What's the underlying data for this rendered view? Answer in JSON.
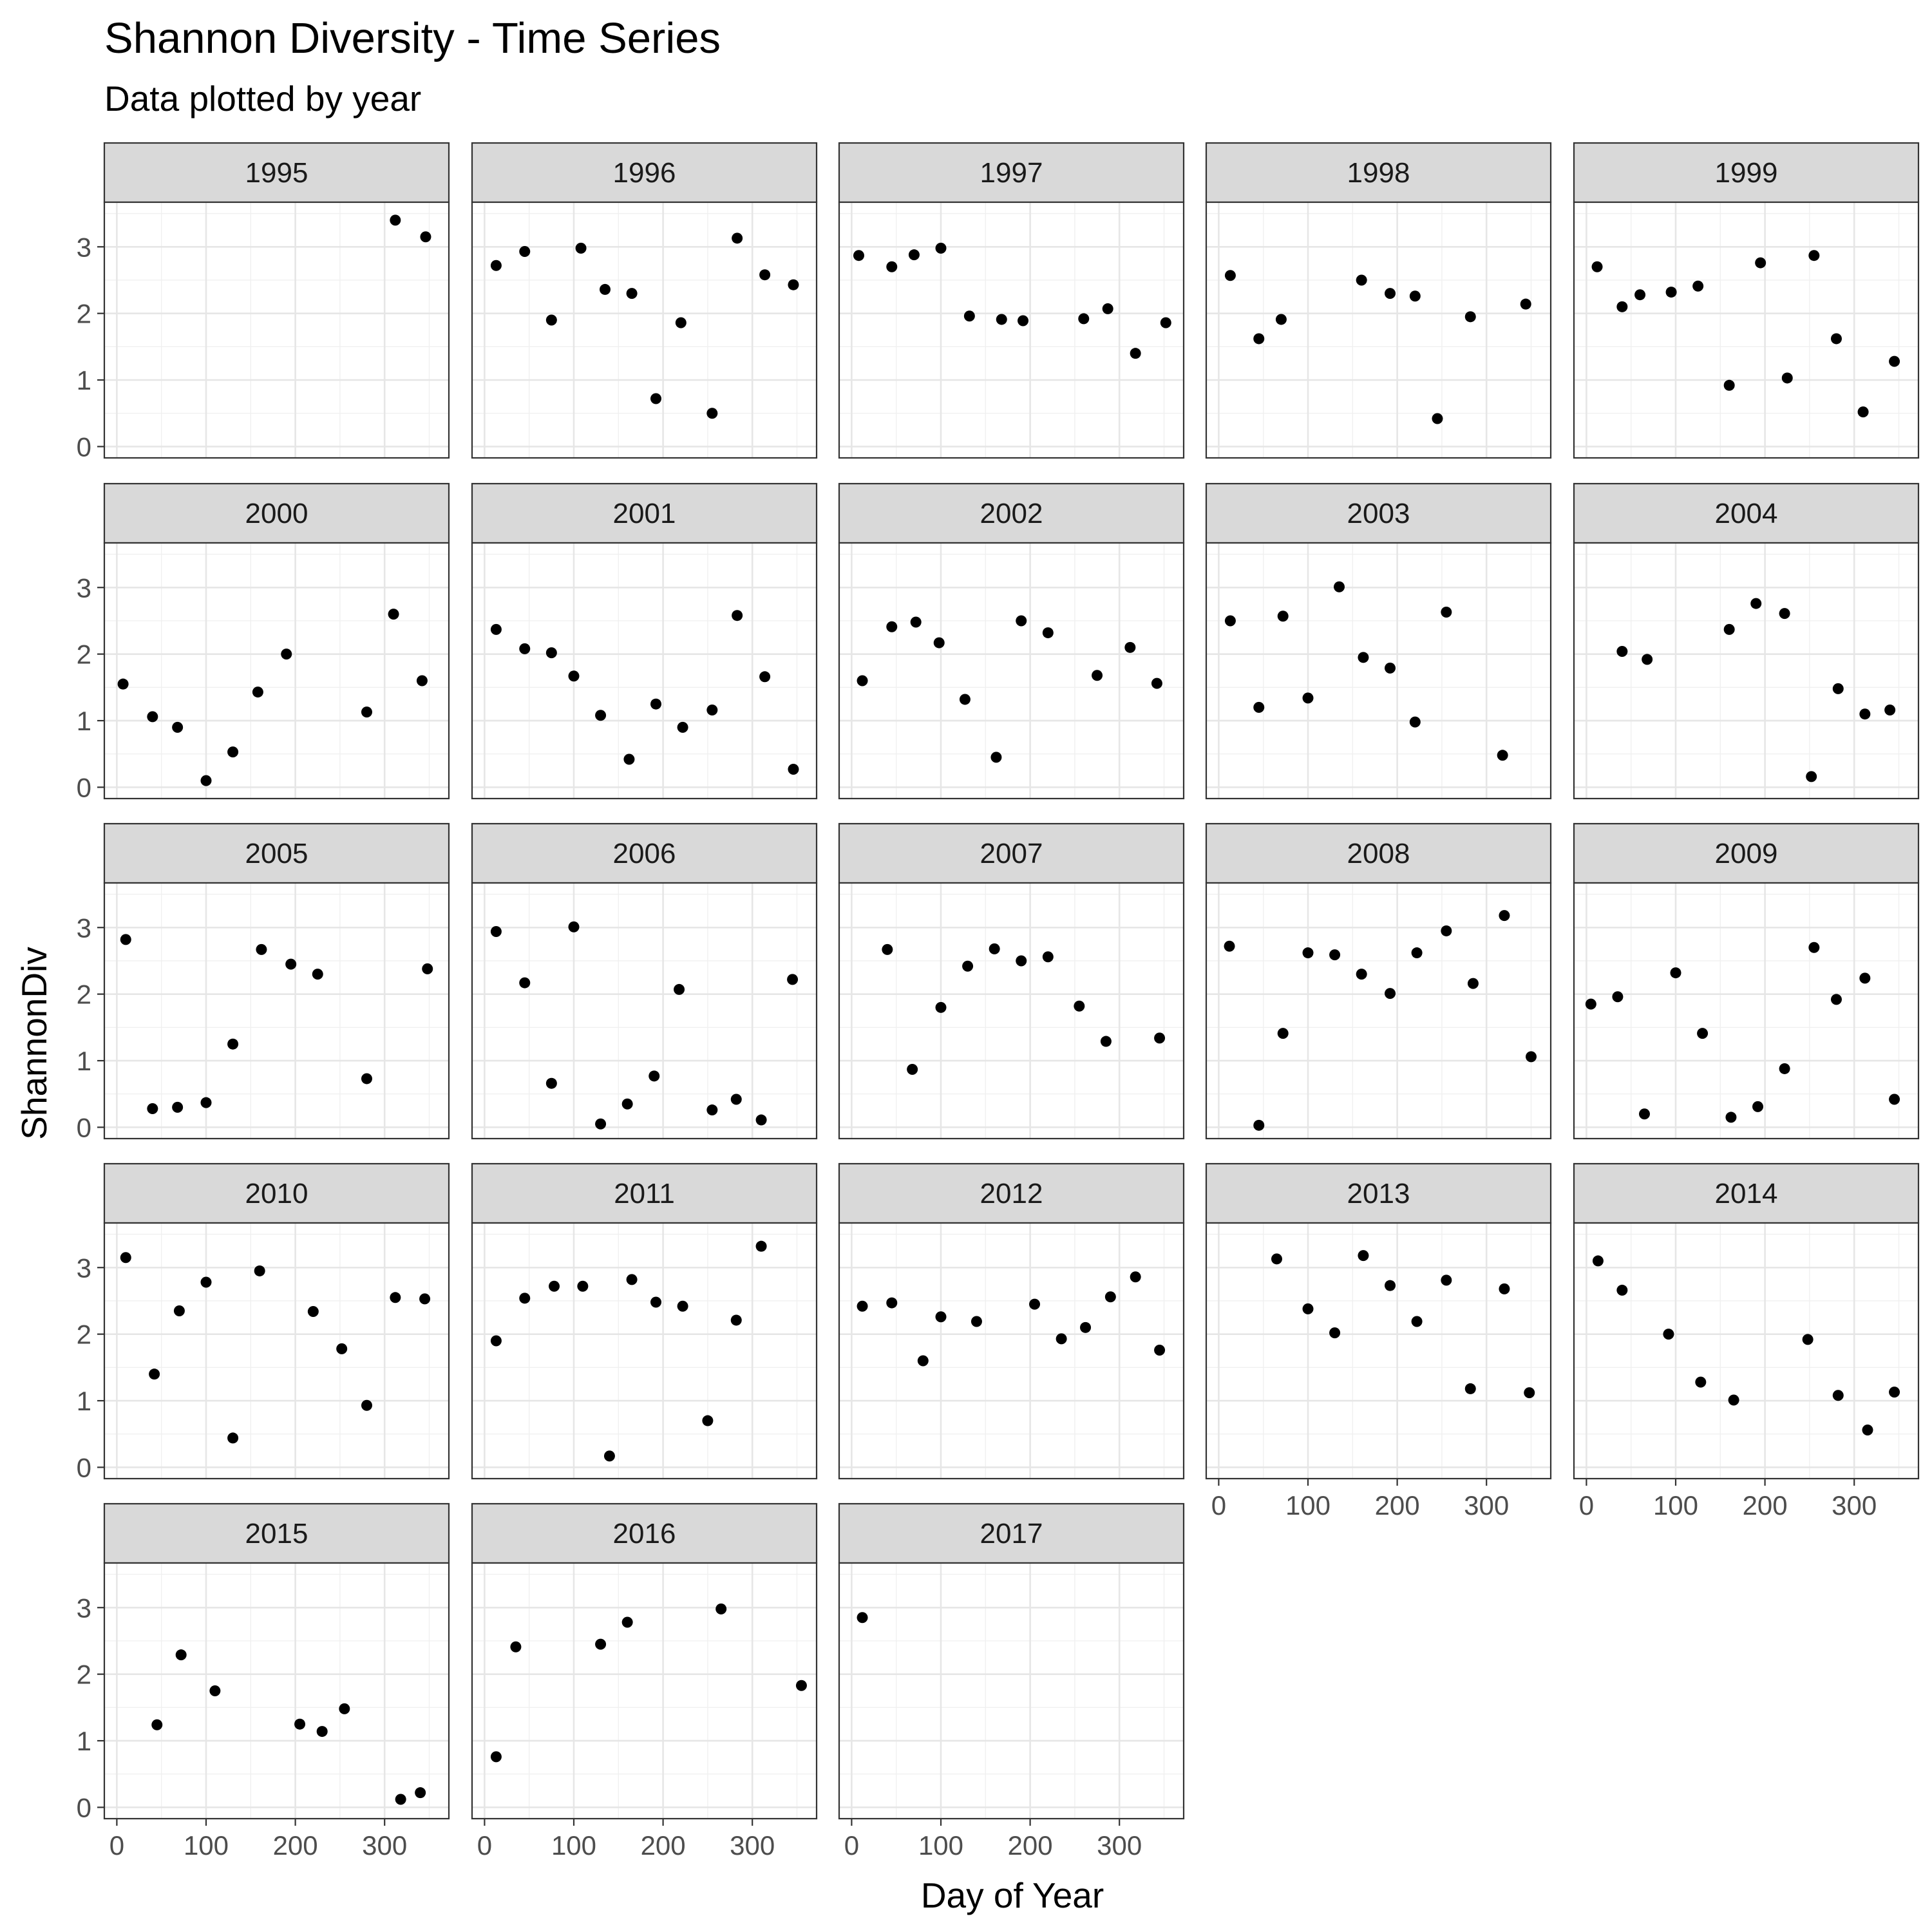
{
  "chart_data": {
    "type": "scatter",
    "title": "Shannon Diversity - Time Series",
    "subtitle": "Data plotted by year",
    "xlabel": "Day of Year",
    "ylabel": "ShannonDiv",
    "xlim": [
      0,
      365
    ],
    "ylim": [
      0,
      3.5
    ],
    "x_ticks": [
      0,
      100,
      200,
      300
    ],
    "y_ticks": [
      0,
      1,
      2,
      3
    ],
    "grid": true,
    "facets": [
      {
        "panel": "1995",
        "x": [
          312,
          346
        ],
        "y": [
          3.4,
          3.15
        ]
      },
      {
        "panel": "1996",
        "x": [
          13,
          45,
          75,
          108,
          135,
          165,
          192,
          220,
          255,
          283,
          314,
          346
        ],
        "y": [
          2.72,
          2.93,
          1.9,
          2.98,
          2.36,
          2.3,
          0.72,
          1.86,
          0.5,
          3.13,
          2.58,
          2.43
        ]
      },
      {
        "panel": "1997",
        "x": [
          8,
          45,
          70,
          100,
          132,
          168,
          192,
          260,
          287,
          318,
          352
        ],
        "y": [
          2.87,
          2.7,
          2.88,
          2.98,
          1.96,
          1.91,
          1.89,
          1.92,
          2.07,
          1.4,
          1.86
        ]
      },
      {
        "panel": "1998",
        "x": [
          13,
          45,
          70,
          160,
          192,
          220,
          245,
          282,
          344
        ],
        "y": [
          2.57,
          1.62,
          1.91,
          2.5,
          2.3,
          2.26,
          0.42,
          1.95,
          2.14
        ]
      },
      {
        "panel": "1999",
        "x": [
          12,
          40,
          60,
          95,
          125,
          160,
          195,
          225,
          255,
          280,
          310,
          345
        ],
        "y": [
          2.7,
          2.1,
          2.28,
          2.32,
          2.41,
          0.92,
          2.76,
          1.03,
          2.87,
          1.62,
          0.52,
          1.28
        ]
      },
      {
        "panel": "2000",
        "x": [
          7,
          40,
          68,
          100,
          130,
          158,
          190,
          280,
          310,
          342
        ],
        "y": [
          1.55,
          1.06,
          0.9,
          0.1,
          0.53,
          1.43,
          2.0,
          1.13,
          2.6,
          1.6
        ]
      },
      {
        "panel": "2001",
        "x": [
          13,
          45,
          75,
          100,
          130,
          162,
          192,
          222,
          255,
          283,
          314,
          346
        ],
        "y": [
          2.37,
          2.08,
          2.02,
          1.67,
          1.08,
          0.42,
          1.25,
          0.9,
          1.16,
          2.58,
          1.66,
          0.27
        ]
      },
      {
        "panel": "2002",
        "x": [
          12,
          45,
          72,
          98,
          127,
          162,
          190,
          220,
          275,
          312,
          342
        ],
        "y": [
          1.6,
          2.41,
          2.48,
          2.17,
          1.32,
          0.45,
          2.5,
          2.32,
          1.68,
          2.1,
          1.56
        ]
      },
      {
        "panel": "2003",
        "x": [
          13,
          45,
          72,
          100,
          135,
          162,
          192,
          220,
          255,
          318
        ],
        "y": [
          2.5,
          1.2,
          2.57,
          1.34,
          3.01,
          1.95,
          1.79,
          0.98,
          2.63,
          0.48
        ]
      },
      {
        "panel": "2004",
        "x": [
          40,
          68,
          160,
          190,
          222,
          252,
          282,
          312,
          340
        ],
        "y": [
          2.04,
          1.92,
          2.37,
          2.76,
          2.61,
          0.16,
          1.48,
          1.1,
          1.16
        ]
      },
      {
        "panel": "2005",
        "x": [
          10,
          40,
          68,
          100,
          130,
          162,
          195,
          225,
          280,
          348
        ],
        "y": [
          2.82,
          0.28,
          0.3,
          0.37,
          1.25,
          2.67,
          2.45,
          2.3,
          0.73,
          2.38
        ]
      },
      {
        "panel": "2006",
        "x": [
          13,
          45,
          75,
          100,
          130,
          160,
          190,
          218,
          255,
          282,
          310,
          345
        ],
        "y": [
          2.94,
          2.17,
          0.66,
          3.01,
          0.05,
          0.35,
          0.77,
          2.07,
          0.26,
          0.42,
          0.11,
          2.22
        ]
      },
      {
        "panel": "2007",
        "x": [
          40,
          68,
          100,
          130,
          160,
          190,
          220,
          255,
          285,
          345
        ],
        "y": [
          2.67,
          0.87,
          1.8,
          2.42,
          2.68,
          2.5,
          2.56,
          1.82,
          1.29,
          1.34
        ]
      },
      {
        "panel": "2008",
        "x": [
          12,
          45,
          72,
          100,
          130,
          160,
          192,
          222,
          255,
          285,
          320,
          350
        ],
        "y": [
          2.72,
          0.03,
          1.41,
          2.62,
          2.59,
          2.3,
          2.01,
          2.62,
          2.95,
          2.16,
          3.18,
          1.06
        ]
      },
      {
        "panel": "2009",
        "x": [
          5,
          35,
          65,
          100,
          130,
          162,
          192,
          222,
          255,
          280,
          312,
          345
        ],
        "y": [
          1.85,
          1.96,
          0.2,
          2.32,
          1.41,
          0.15,
          0.31,
          0.88,
          2.7,
          1.92,
          2.24,
          0.42
        ]
      },
      {
        "panel": "2010",
        "x": [
          10,
          42,
          70,
          100,
          130,
          160,
          220,
          252,
          280,
          312,
          345
        ],
        "y": [
          3.15,
          1.4,
          2.35,
          2.78,
          0.44,
          2.95,
          2.34,
          1.78,
          0.93,
          2.55,
          2.53
        ]
      },
      {
        "panel": "2011",
        "x": [
          13,
          45,
          78,
          110,
          140,
          165,
          192,
          222,
          250,
          282,
          310
        ],
        "y": [
          1.9,
          2.54,
          2.72,
          2.72,
          0.17,
          2.82,
          2.48,
          2.42,
          0.7,
          2.21,
          3.32
        ]
      },
      {
        "panel": "2012",
        "x": [
          12,
          45,
          80,
          100,
          140,
          205,
          235,
          262,
          290,
          318,
          345
        ],
        "y": [
          2.42,
          2.47,
          1.6,
          2.26,
          2.19,
          2.45,
          1.93,
          2.1,
          2.56,
          2.86,
          1.76
        ]
      },
      {
        "panel": "2013",
        "x": [
          65,
          100,
          130,
          162,
          192,
          222,
          255,
          282,
          320,
          348
        ],
        "y": [
          3.13,
          2.38,
          2.02,
          3.18,
          2.73,
          2.19,
          2.81,
          1.18,
          2.68,
          1.12
        ]
      },
      {
        "panel": "2014",
        "x": [
          13,
          40,
          92,
          128,
          165,
          248,
          282,
          315,
          345
        ],
        "y": [
          3.1,
          2.66,
          2.0,
          1.28,
          1.01,
          1.92,
          1.08,
          0.56,
          1.13
        ]
      },
      {
        "panel": "2015",
        "x": [
          45,
          72,
          110,
          205,
          230,
          255,
          318,
          340
        ],
        "y": [
          1.24,
          2.29,
          1.75,
          1.25,
          1.14,
          1.48,
          0.12,
          0.22
        ]
      },
      {
        "panel": "2016",
        "x": [
          13,
          35,
          130,
          160,
          265,
          355
        ],
        "y": [
          0.76,
          2.41,
          2.45,
          2.78,
          2.98,
          1.83
        ]
      },
      {
        "panel": "2017",
        "x": [
          12
        ],
        "y": [
          2.85
        ]
      }
    ]
  }
}
